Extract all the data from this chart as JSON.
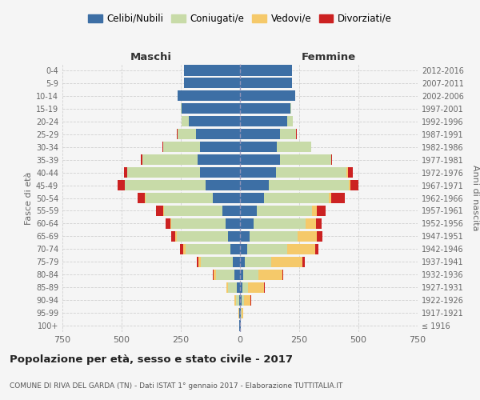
{
  "age_groups": [
    "100+",
    "95-99",
    "90-94",
    "85-89",
    "80-84",
    "75-79",
    "70-74",
    "65-69",
    "60-64",
    "55-59",
    "50-54",
    "45-49",
    "40-44",
    "35-39",
    "30-34",
    "25-29",
    "20-24",
    "15-19",
    "10-14",
    "5-9",
    "0-4"
  ],
  "birth_years": [
    "≤ 1916",
    "1917-1921",
    "1922-1926",
    "1927-1931",
    "1932-1936",
    "1937-1941",
    "1942-1946",
    "1947-1951",
    "1952-1956",
    "1957-1961",
    "1962-1966",
    "1967-1971",
    "1972-1976",
    "1977-1981",
    "1982-1986",
    "1987-1991",
    "1992-1996",
    "1997-2001",
    "2002-2006",
    "2007-2011",
    "2012-2016"
  ],
  "male_celibi": [
    2,
    3,
    5,
    12,
    22,
    30,
    42,
    52,
    62,
    75,
    115,
    145,
    170,
    180,
    168,
    185,
    215,
    245,
    265,
    238,
    238
  ],
  "male_coniugati": [
    0,
    2,
    12,
    38,
    78,
    135,
    188,
    215,
    228,
    245,
    285,
    340,
    305,
    232,
    157,
    80,
    30,
    5,
    0,
    0,
    0
  ],
  "male_vedovi": [
    0,
    1,
    5,
    8,
    13,
    12,
    10,
    8,
    5,
    3,
    2,
    1,
    0,
    0,
    0,
    0,
    0,
    0,
    0,
    0,
    0
  ],
  "male_divorziati": [
    0,
    0,
    0,
    0,
    2,
    6,
    12,
    15,
    20,
    32,
    32,
    32,
    15,
    7,
    3,
    2,
    0,
    0,
    0,
    0,
    0
  ],
  "female_nubili": [
    2,
    4,
    8,
    10,
    15,
    20,
    30,
    42,
    56,
    72,
    102,
    122,
    152,
    168,
    157,
    168,
    198,
    212,
    232,
    218,
    218
  ],
  "female_coniugate": [
    0,
    2,
    8,
    25,
    62,
    112,
    168,
    202,
    222,
    232,
    272,
    338,
    298,
    217,
    142,
    70,
    25,
    5,
    0,
    0,
    0
  ],
  "female_vedove": [
    1,
    6,
    28,
    68,
    102,
    132,
    118,
    82,
    42,
    20,
    10,
    5,
    5,
    0,
    0,
    0,
    0,
    0,
    0,
    0,
    0
  ],
  "female_divorziate": [
    0,
    0,
    2,
    2,
    3,
    10,
    15,
    22,
    26,
    36,
    57,
    36,
    20,
    5,
    2,
    1,
    0,
    0,
    0,
    0,
    0
  ],
  "colors_celibi": "#3d6fa5",
  "colors_coniugati": "#c8dba8",
  "colors_vedovi": "#f5c96a",
  "colors_divorziati": "#cc2222",
  "xlim": 750,
  "bg_color": "#f5f5f5",
  "grid_color": "#cccccc",
  "title": "Popolazione per età, sesso e stato civile - 2017",
  "subtitle": "COMUNE DI RIVA DEL GARDA (TN) - Dati ISTAT 1° gennaio 2017 - Elaborazione TUTTITALIA.IT",
  "legend_labels": [
    "Celibi/Nubili",
    "Coniugati/e",
    "Vedovi/e",
    "Divorziati/e"
  ],
  "label_maschi": "Maschi",
  "label_femmine": "Femmine",
  "ylabel_left": "Fasce di età",
  "ylabel_right": "Anni di nascita"
}
